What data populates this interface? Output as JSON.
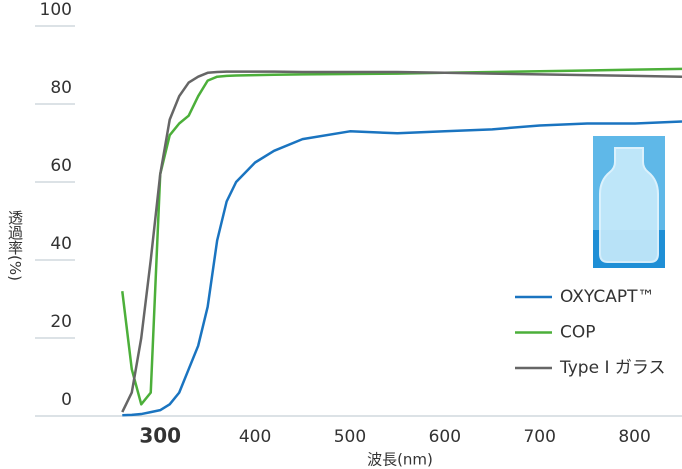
{
  "chart_data": {
    "type": "line",
    "y_label": "透過率(%)",
    "x_label": "波長(nm)",
    "xlim": [
      168,
      850
    ],
    "ylim": [
      0,
      100
    ],
    "xticks": [
      300,
      400,
      500,
      600,
      700,
      800
    ],
    "yticks": [
      0,
      20,
      40,
      60,
      80,
      100
    ],
    "legend": "bottom-right",
    "x": [
      260,
      270,
      280,
      290,
      300,
      310,
      320,
      330,
      340,
      350,
      360,
      370,
      380,
      400,
      420,
      450,
      500,
      550,
      600,
      650,
      700,
      750,
      800,
      850
    ],
    "series": [
      {
        "name": "OXYCAPT™",
        "color": "#1a74c0",
        "values": [
          0.2,
          0.3,
          0.5,
          1,
          1.5,
          3,
          6,
          12,
          18,
          28,
          45,
          55,
          60,
          65,
          68,
          71,
          73,
          72.5,
          73,
          73.5,
          74.5,
          75,
          75,
          75.5
        ]
      },
      {
        "name": "COP",
        "color": "#4caf3a",
        "values": [
          32,
          12,
          3,
          6,
          62,
          72,
          75,
          77,
          82,
          86,
          87,
          87.2,
          87.3,
          87.4,
          87.5,
          87.6,
          87.7,
          87.8,
          88,
          88.2,
          88.4,
          88.6,
          88.8,
          89
        ]
      },
      {
        "name": "Type Ⅰ ガラス",
        "color": "#666666",
        "values": [
          1,
          6,
          20,
          40,
          62,
          76,
          82,
          85.5,
          87,
          88,
          88.2,
          88.3,
          88.3,
          88.3,
          88.3,
          88.2,
          88.2,
          88.2,
          88,
          87.8,
          87.6,
          87.4,
          87.2,
          87
        ]
      }
    ]
  }
}
